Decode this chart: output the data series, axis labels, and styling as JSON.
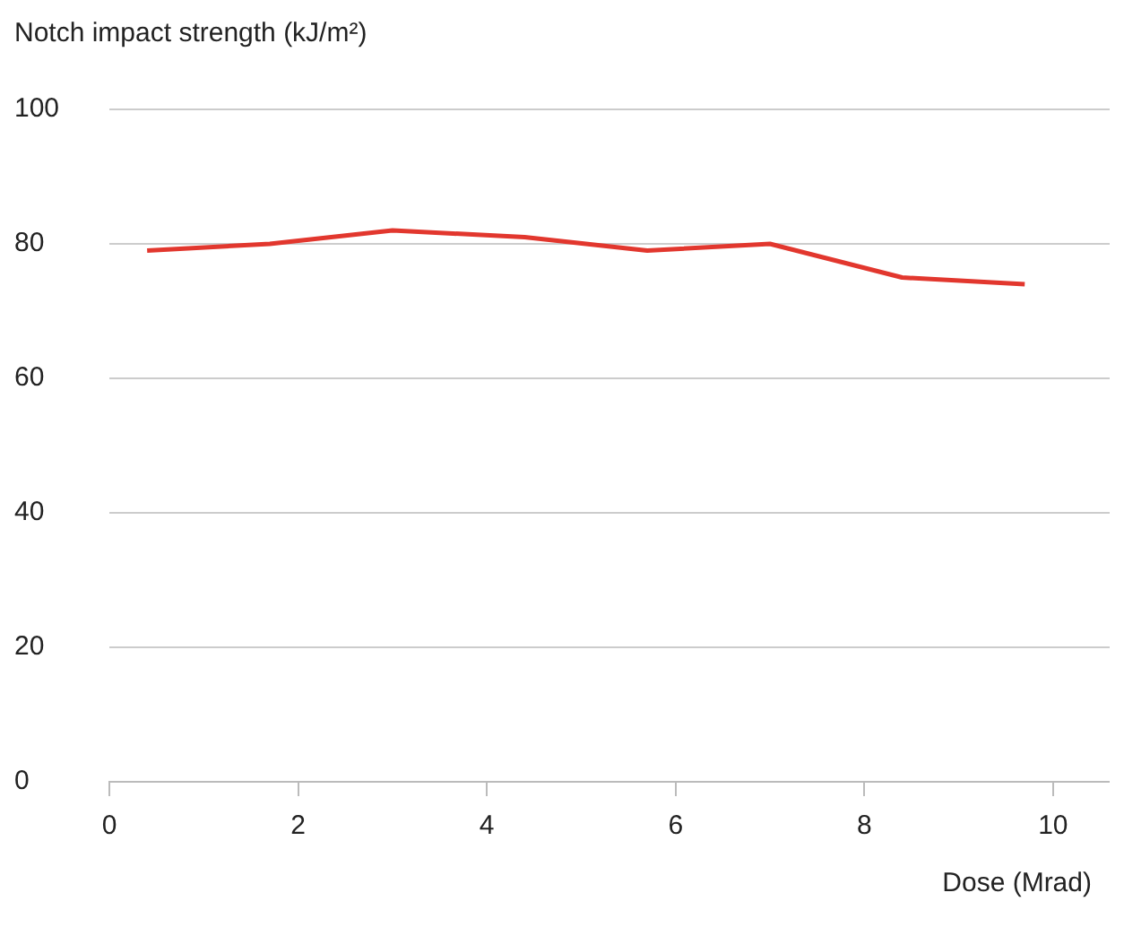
{
  "chart_data": {
    "type": "line",
    "ylabel": "Notch impact strength (kJ/m²)",
    "xlabel": "Dose (Mrad)",
    "x": [
      0.4,
      1.7,
      3.0,
      4.4,
      5.7,
      7.0,
      8.4,
      9.7
    ],
    "series": [
      {
        "color": "#e2372e",
        "values": [
          79,
          80,
          82,
          81,
          79,
          80,
          75,
          74
        ]
      }
    ],
    "xlim": [
      0,
      10.6
    ],
    "xticks": [
      0,
      2,
      4,
      6,
      8,
      10
    ],
    "ylim": [
      0,
      100
    ],
    "yticks": [
      0,
      20,
      40,
      60,
      80,
      100
    ],
    "grid": "y",
    "legend": false,
    "marker": "none",
    "line_style": "solid"
  }
}
